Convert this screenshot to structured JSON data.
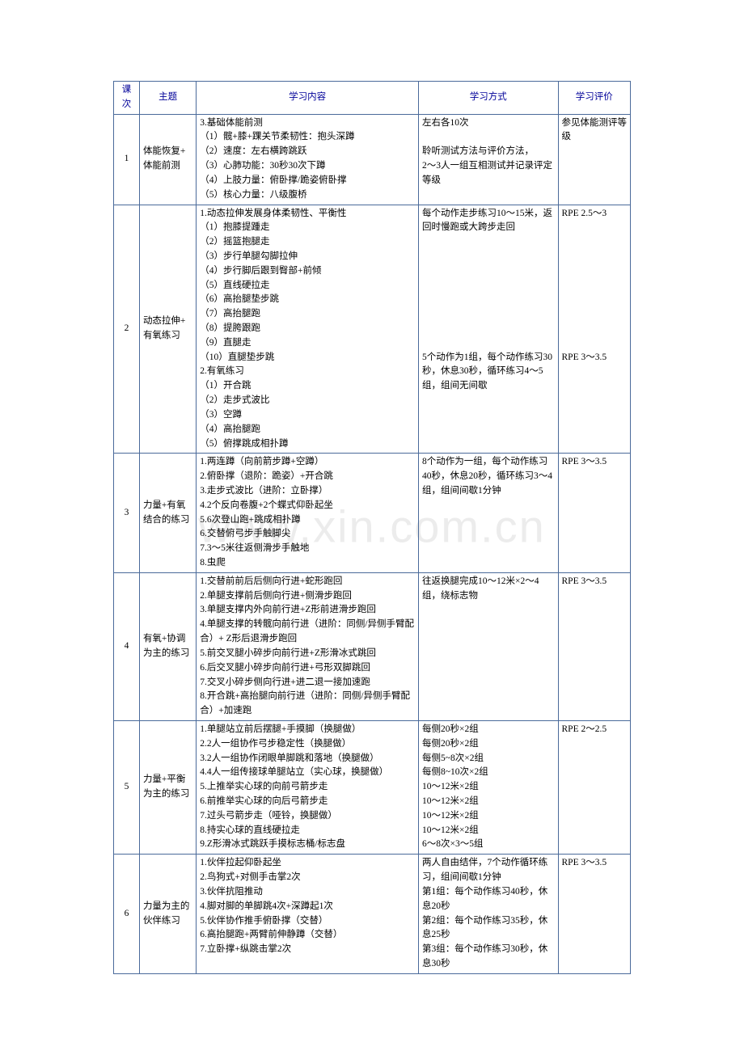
{
  "watermark": "www.xin.com.cn",
  "headers": {
    "c1": "课次",
    "c2": "主题",
    "c3": "学习内容",
    "c4": "学习方式",
    "c5": "学习评价"
  },
  "rows": [
    {
      "num": "1",
      "topic": "体能恢复+\n体能前测",
      "content": "3.基础体能前测\n（1）髋+膝+踝关节柔韧性：抱头深蹲\n（2）速度：左右横跨跳跃\n（3）心肺功能：30秒30次下蹲\n（4）上肢力量：俯卧撑/跪姿俯卧撑\n（5）核心力量：八级腹桥",
      "method": "左右各10次\n\n聆听测试方法与评价方法，\n2～3人一组互相测试并记录评定等级",
      "eval": "参见体能测评等级"
    },
    {
      "num": "2",
      "topic": "动态拉伸+\n有氧练习",
      "content": "1.动态拉伸发展身体柔韧性、平衡性\n（1）抱膝提踵走\n（2）摇篮抱腿走\n（3）步行单腿勾脚拉伸\n（4）步行脚后跟到臀部+前倾\n（5）直线硬拉走\n（6）高抬腿垫步跳\n（7）高抬腿跑\n（8）提胯跟跑\n（9）直腿走\n（10）直腿垫步跳\n2.有氧练习\n（1）开合跳\n（2）走步式波比\n（3）空蹲\n（4）高抬腿跑\n（5）俯撑跳成相扑蹲",
      "method": "每个动作走步练习10～15米，返回时慢跑或大跨步走回\n\n\n\n\n\n\n\n\n5个动作为1组，每个动作练习30秒，休息30秒，循环练习4～5组，组间无间歇",
      "eval": "RPE 2.5～3\n\n\n\n\n\n\n\n\n\nRPE 3～3.5"
    },
    {
      "num": "3",
      "topic": "力量+有氧\n结合的练习",
      "content": "1.两连蹲（向前箭步蹲+空蹲）\n2.俯卧撑（退阶：跪姿）+开合跳\n3.走步式波比（进阶：立卧撑）\n4.2个反向卷腹+2个蝶式仰卧起坐\n5.6次登山跑+跳成相扑蹲\n6.交替俯弓步手触脚尖\n7.3～5米往返侧滑步手触地\n8.虫爬",
      "method": "8个动作为一组，每个动作练习40秒，休息20秒，循环练习3～4组，组间间歇1分钟",
      "eval": "RPE 3～3.5"
    },
    {
      "num": "4",
      "topic": "有氧+协调\n为主的练习",
      "content": "1.交替前前后后侧向行进+蛇形跑回\n2.单腿支撑前后侧向行进+侧滑步跑回\n3.单腿支撑内外向前行进+Z形前进滑步跑回\n4.单腿支撑的转髋向前行进（进阶：同侧/异侧手臂配合）+ Z形后退滑步跑回\n5.前交叉腿小碎步向前行进+Z形滑冰式跳回\n6.后交叉腿小碎步向前行进+弓形双脚跳回\n7.交叉小碎步侧向行进+进二退一接加速跑\n8.开合跳+高抬腿向前行进（进阶：同侧/异侧手臂配合）+加速跑",
      "method": "往返换腿完成10～12米×2～4组，绕标志物",
      "eval": "RPE 3～3.5"
    },
    {
      "num": "5",
      "topic": "力量+平衡\n为主的练习",
      "content": "1.单腿站立前后摆腿+手摸脚（换腿做）\n2.2人一组协作弓步稳定性（换腿做）\n3.2人一组协作闭眼单脚跳和落地（换腿做）\n4.4人一组传接球单腿站立（实心球，换腿做）\n5.上推举实心球的向前弓箭步走\n6.前推举实心球的向后弓箭步走\n7.过头弓箭步走（哑铃，换腿做）\n8.持实心球的直线硬拉走\n9.Z形滑冰式跳跃手摸标志桶/标志盘",
      "method": "每侧20秒×2组\n每侧20秒×2组\n每侧5~8次×2组\n每侧8~10次×2组\n10～12米×2组\n10～12米×2组\n10～12米×2组\n10～12米×2组\n6～8次×3～5组",
      "eval": "RPE 2～2.5"
    },
    {
      "num": "6",
      "topic": "力量为主的\n伙伴练习",
      "content": "1.伙伴拉起仰卧起坐\n2.鸟狗式+对侧手击掌2次\n3.伙伴抗阻推动\n4.脚对脚的单脚跳4次+深蹲起1次\n5.伙伴协作推手俯卧撑（交替）\n6.高抬腿跑+两臂前伸静蹲（交替）\n7.立卧撑+纵跳击掌2次",
      "method": "两人自由结伴，7个动作循环练习，组间间歇1分钟\n第1组：每个动作练习40秒，休息20秒\n第2组：每个动作练习35秒，休息25秒\n第3组：每个动作练习30秒，休息30秒",
      "eval": "RPE 3～3.5"
    }
  ]
}
